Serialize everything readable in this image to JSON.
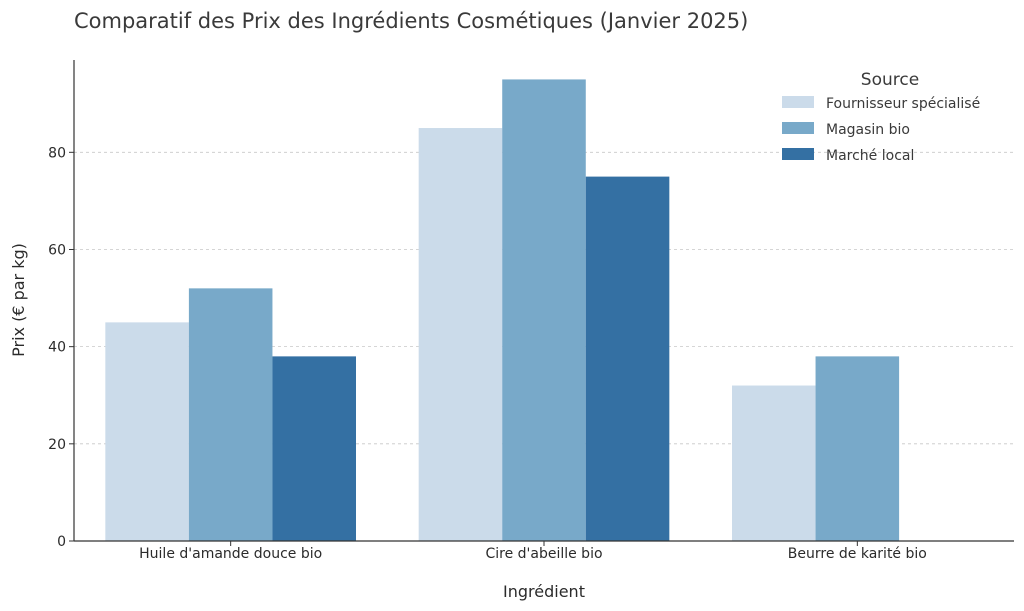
{
  "chart_data": {
    "type": "bar",
    "title": "Comparatif des Prix des Ingrédients Cosmétiques (Janvier 2025)",
    "xlabel": "Ingrédient",
    "ylabel": "Prix (€ par kg)",
    "categories": [
      "Huile d'amande douce bio",
      "Cire d'abeille bio",
      "Beurre de karité bio"
    ],
    "series": [
      {
        "name": "Fournisseur spécialisé",
        "values": [
          45,
          85,
          32
        ],
        "color": "#cbdbea"
      },
      {
        "name": "Magasin bio",
        "values": [
          52,
          95,
          38
        ],
        "color": "#78a9c9"
      },
      {
        "name": "Marché local",
        "values": [
          38,
          75,
          null
        ],
        "color": "#3470a3"
      }
    ],
    "ylim": [
      0,
      99
    ],
    "yticks": [
      0,
      20,
      40,
      60,
      80
    ],
    "grid": true,
    "legend": {
      "title": "Source",
      "position": "top-right"
    }
  }
}
